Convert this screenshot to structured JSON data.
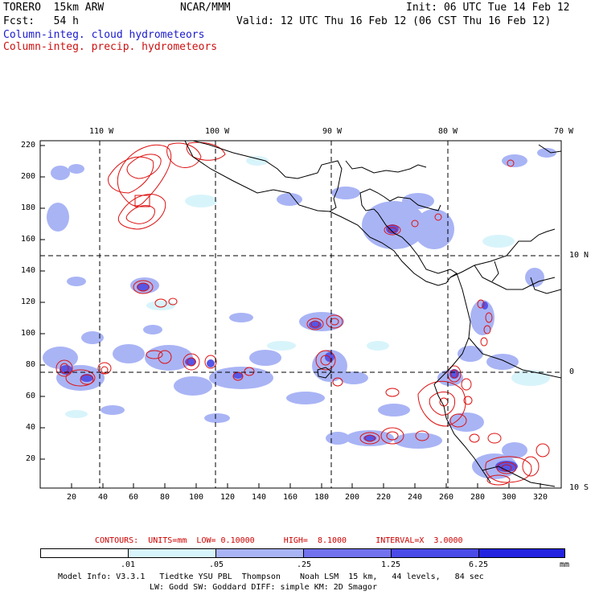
{
  "header": {
    "model": "TORERO  15km ARW",
    "center": "NCAR/MMM",
    "init": "Init: 06 UTC Tue 14 Feb 12",
    "fcst": "Fcst:   54 h",
    "valid": "Valid: 12 UTC Thu 16 Feb 12 (06 CST Thu 16 Feb 12)"
  },
  "legend": {
    "cloud": "Column-integ. cloud hydrometeors",
    "precip": "Column-integ. precip. hydrometeors"
  },
  "lon_labels": [
    "110 W",
    "100 W",
    "90 W",
    "80 W",
    "70 W"
  ],
  "lat_labels": [
    "10 N",
    "0",
    "10 S"
  ],
  "y_ticks": [
    "220",
    "200",
    "180",
    "160",
    "140",
    "120",
    "100",
    "80",
    "60",
    "40",
    "20"
  ],
  "x_ticks": [
    "20",
    "40",
    "60",
    "80",
    "100",
    "120",
    "140",
    "160",
    "180",
    "200",
    "220",
    "240",
    "260",
    "280",
    "300",
    "320"
  ],
  "contour_info": "CONTOURS:  UNITS=mm  LOW= 0.10000      HIGH=  8.1000      INTERVAL=X  3.0000",
  "colorbar": {
    "labels": [
      ".01",
      ".05",
      ".25",
      "1.25",
      "6.25"
    ],
    "unit": "mm",
    "colors": [
      "#ffffff",
      "#d8f4fb",
      "#a9b4f5",
      "#7272ee",
      "#4b4be8",
      "#2323e0"
    ]
  },
  "model_info_1": "Model Info: V3.3.1   Tiedtke YSU PBL  Thompson    Noah LSM  15 km,   44 levels,   84 sec",
  "model_info_2": "LW: Godd SW: Goddard DIFF: simple KM: 2D Smagor"
}
